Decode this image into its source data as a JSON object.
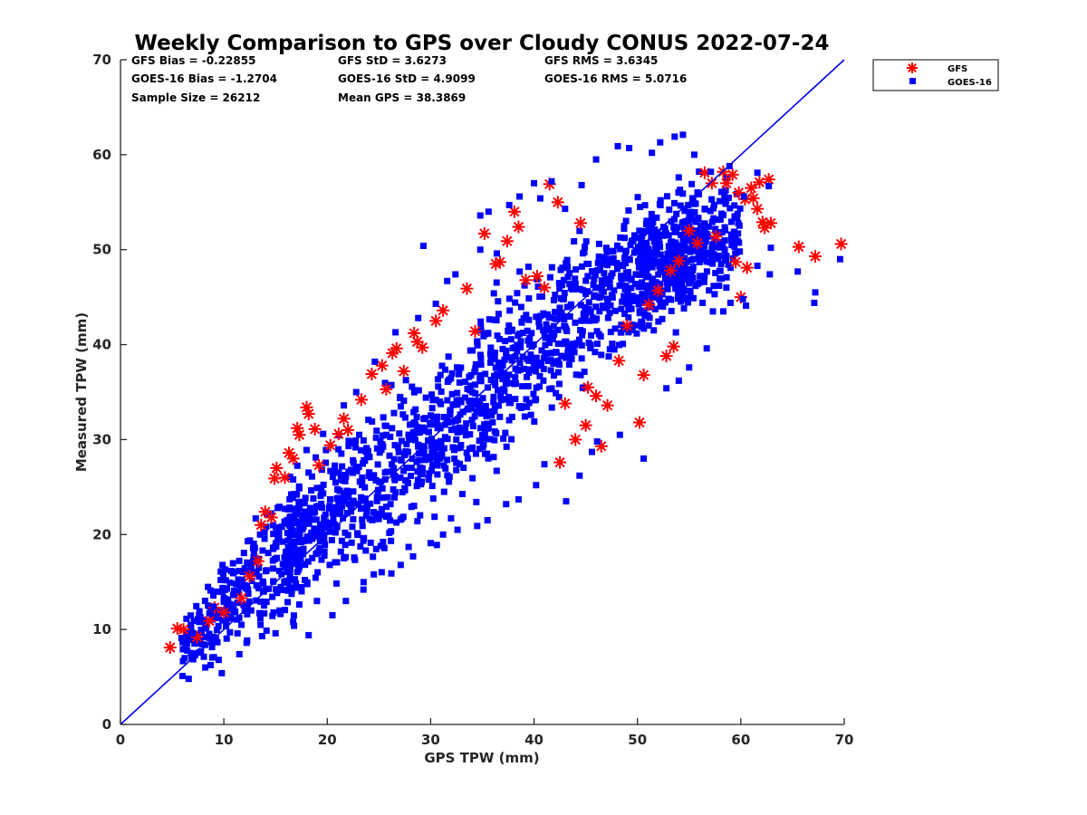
{
  "chart_data": {
    "type": "scatter",
    "title": "Weekly Comparison to GPS over Cloudy CONUS 2022-07-24",
    "xlabel": "GPS TPW (mm)",
    "ylabel": "Measured TPW (mm)",
    "xlim": [
      0,
      70
    ],
    "ylim": [
      0,
      70
    ],
    "xticks": [
      "0",
      "10",
      "20",
      "30",
      "40",
      "50",
      "60",
      "70"
    ],
    "yticks": [
      "0",
      "10",
      "20",
      "30",
      "40",
      "50",
      "60",
      "70"
    ],
    "grid": false,
    "legend_position": "outside-top-right",
    "stats": {
      "gfs_bias": "GFS Bias = -0.22855",
      "gfs_std": "GFS StD = 3.6273",
      "gfs_rms": "GFS RMS = 3.6345",
      "goes_bias": "GOES-16 Bias = -1.2704",
      "goes_std": "GOES-16 StD = 4.9099",
      "goes_rms": "GOES-16 RMS = 5.0716",
      "sample_size": "Sample Size = 26212",
      "mean_gps": "Mean GPS = 38.3869"
    },
    "reference_line": {
      "x": [
        0,
        70
      ],
      "y": [
        0,
        70
      ],
      "color": "#0000ee"
    },
    "series": [
      {
        "name": "GFS",
        "marker": "asterisk",
        "color": "#ff0000",
        "points": [
          [
            4.8,
            8.1
          ],
          [
            5.5,
            10.1
          ],
          [
            6.1,
            10.0
          ],
          [
            7.4,
            9.2
          ],
          [
            8.6,
            10.9
          ],
          [
            9.1,
            12.3
          ],
          [
            10.0,
            11.8
          ],
          [
            11.7,
            13.3
          ],
          [
            12.5,
            15.6
          ],
          [
            13.3,
            17.2
          ],
          [
            13.6,
            21.0
          ],
          [
            14.0,
            22.4
          ],
          [
            14.6,
            21.8
          ],
          [
            14.9,
            25.9
          ],
          [
            15.1,
            27.0
          ],
          [
            15.9,
            26.0
          ],
          [
            16.3,
            28.6
          ],
          [
            16.7,
            28.0
          ],
          [
            17.1,
            31.2
          ],
          [
            17.3,
            30.5
          ],
          [
            18.0,
            33.4
          ],
          [
            18.2,
            32.7
          ],
          [
            18.8,
            31.1
          ],
          [
            19.2,
            27.3
          ],
          [
            20.3,
            29.4
          ],
          [
            21.1,
            30.6
          ],
          [
            21.6,
            32.2
          ],
          [
            22.0,
            31.0
          ],
          [
            23.3,
            34.2
          ],
          [
            24.3,
            36.9
          ],
          [
            25.3,
            37.8
          ],
          [
            25.7,
            35.3
          ],
          [
            26.3,
            39.1
          ],
          [
            26.7,
            39.6
          ],
          [
            27.4,
            37.2
          ],
          [
            28.4,
            41.2
          ],
          [
            28.7,
            40.3
          ],
          [
            29.2,
            39.7
          ],
          [
            30.5,
            42.5
          ],
          [
            31.2,
            43.6
          ],
          [
            33.5,
            45.9
          ],
          [
            34.3,
            41.4
          ],
          [
            35.2,
            51.7
          ],
          [
            36.3,
            48.5
          ],
          [
            36.7,
            48.7
          ],
          [
            37.4,
            50.9
          ],
          [
            38.1,
            54.0
          ],
          [
            38.5,
            52.4
          ],
          [
            39.2,
            46.8
          ],
          [
            40.3,
            47.2
          ],
          [
            41.0,
            46.0
          ],
          [
            42.3,
            55.0
          ],
          [
            41.5,
            56.9
          ],
          [
            44.5,
            52.8
          ],
          [
            43.0,
            33.8
          ],
          [
            42.5,
            27.6
          ],
          [
            44.0,
            30.0
          ],
          [
            45.0,
            31.5
          ],
          [
            45.2,
            35.5
          ],
          [
            46.0,
            34.6
          ],
          [
            46.5,
            29.3
          ],
          [
            47.1,
            33.6
          ],
          [
            48.2,
            38.3
          ],
          [
            49.0,
            42.0
          ],
          [
            50.2,
            31.8
          ],
          [
            50.6,
            36.8
          ],
          [
            51.1,
            44.2
          ],
          [
            52.0,
            45.7
          ],
          [
            52.8,
            38.8
          ],
          [
            53.5,
            39.8
          ],
          [
            53.2,
            47.8
          ],
          [
            54.0,
            48.8
          ],
          [
            55.0,
            52.0
          ],
          [
            55.8,
            50.7
          ],
          [
            56.5,
            58.1
          ],
          [
            57.2,
            57.0
          ],
          [
            57.6,
            51.4
          ],
          [
            58.3,
            58.2
          ],
          [
            58.6,
            57.0
          ],
          [
            59.2,
            57.9
          ],
          [
            59.5,
            48.7
          ],
          [
            59.8,
            56.0
          ],
          [
            60.0,
            45.0
          ],
          [
            60.4,
            55.3
          ],
          [
            60.6,
            48.1
          ],
          [
            61.0,
            56.5
          ],
          [
            61.2,
            55.4
          ],
          [
            61.6,
            54.3
          ],
          [
            61.8,
            57.1
          ],
          [
            62.1,
            52.9
          ],
          [
            62.3,
            52.3
          ],
          [
            62.7,
            57.4
          ],
          [
            62.9,
            52.8
          ],
          [
            65.6,
            50.3
          ],
          [
            67.2,
            49.3
          ],
          [
            69.7,
            50.6
          ]
        ]
      },
      {
        "name": "GOES-16",
        "marker": "square",
        "color": "#0000ff",
        "points": [
          [
            6.0,
            5.1
          ],
          [
            6.6,
            4.8
          ],
          [
            7.0,
            9.6
          ],
          [
            8.2,
            6.0
          ],
          [
            9.5,
            6.8
          ],
          [
            9.8,
            5.4
          ],
          [
            10.3,
            14.3
          ],
          [
            11.5,
            7.4
          ],
          [
            12.2,
            8.6
          ],
          [
            13.7,
            9.3
          ],
          [
            15.0,
            9.6
          ],
          [
            16.7,
            10.8
          ],
          [
            18.2,
            9.4
          ],
          [
            19.0,
            13.0
          ],
          [
            20.5,
            11.5
          ],
          [
            21.8,
            13.0
          ],
          [
            23.5,
            14.2
          ],
          [
            24.5,
            15.8
          ],
          [
            26.2,
            15.9
          ],
          [
            27.1,
            16.8
          ],
          [
            28.3,
            17.7
          ],
          [
            30.0,
            19.1
          ],
          [
            30.6,
            18.9
          ],
          [
            31.2,
            20.0
          ],
          [
            32.6,
            20.5
          ],
          [
            34.5,
            20.9
          ],
          [
            35.5,
            21.5
          ],
          [
            37.3,
            23.2
          ],
          [
            38.5,
            23.7
          ],
          [
            40.2,
            25.2
          ],
          [
            41.0,
            27.4
          ],
          [
            43.1,
            23.5
          ],
          [
            44.4,
            26.2
          ],
          [
            45.6,
            28.7
          ],
          [
            46.1,
            29.8
          ],
          [
            48.3,
            30.5
          ],
          [
            50.6,
            28.0
          ],
          [
            52.8,
            35.4
          ],
          [
            54.0,
            36.2
          ],
          [
            55.0,
            37.6
          ],
          [
            56.7,
            39.6
          ],
          [
            57.3,
            43.5
          ],
          [
            58.3,
            43.5
          ],
          [
            58.6,
            46.0
          ],
          [
            59.0,
            44.4
          ],
          [
            60.2,
            44.8
          ],
          [
            60.5,
            44.1
          ],
          [
            61.6,
            48.3
          ],
          [
            62.8,
            47.4
          ],
          [
            65.5,
            47.7
          ],
          [
            67.1,
            44.4
          ],
          [
            67.2,
            45.5
          ],
          [
            69.6,
            49.0
          ],
          [
            62.9,
            50.2
          ],
          [
            62.7,
            56.7
          ],
          [
            61.6,
            58.1
          ],
          [
            60.3,
            55.6
          ],
          [
            58.9,
            58.8
          ],
          [
            57.1,
            58.2
          ],
          [
            55.5,
            60.0
          ],
          [
            54.4,
            62.1
          ],
          [
            53.6,
            61.9
          ],
          [
            52.2,
            61.3
          ],
          [
            51.4,
            60.2
          ],
          [
            49.2,
            60.7
          ],
          [
            48.1,
            60.9
          ],
          [
            46.0,
            59.5
          ],
          [
            44.6,
            56.8
          ],
          [
            41.7,
            57.2
          ],
          [
            40.6,
            55.4
          ],
          [
            38.6,
            55.6
          ],
          [
            37.6,
            54.7
          ],
          [
            36.4,
            49.6
          ],
          [
            34.8,
            50.0
          ],
          [
            32.4,
            47.4
          ],
          [
            31.6,
            46.7
          ],
          [
            30.5,
            44.3
          ],
          [
            28.8,
            42.8
          ],
          [
            26.6,
            41.3
          ],
          [
            24.6,
            38.2
          ],
          [
            22.8,
            35.0
          ],
          [
            21.6,
            33.6
          ],
          [
            19.6,
            30.6
          ],
          [
            18.0,
            28.9
          ],
          [
            16.7,
            25.8
          ],
          [
            15.2,
            22.8
          ],
          [
            13.5,
            20.0
          ],
          [
            12.5,
            17.0
          ],
          [
            11.0,
            13.7
          ],
          [
            9.0,
            12.4
          ],
          [
            8.6,
            11.7
          ],
          [
            7.1,
            10.9
          ],
          [
            5.9,
            9.1
          ],
          [
            34.8,
            53.6
          ],
          [
            35.6,
            54.0
          ],
          [
            29.3,
            50.4
          ],
          [
            40.0,
            57.0
          ],
          [
            43.0,
            54.3
          ],
          [
            42.2,
            42.7
          ],
          [
            39.8,
            39.8
          ],
          [
            33.8,
            35.2
          ],
          [
            27.9,
            30.0
          ],
          [
            25.6,
            25.8
          ],
          [
            20.5,
            22.3
          ]
        ]
      }
    ],
    "density_cloud": {
      "description_note": "",
      "center_line": [
        [
          5,
          7
        ],
        [
          15,
          17.5
        ],
        [
          25,
          26
        ],
        [
          35,
          35
        ],
        [
          45,
          44
        ],
        [
          55,
          50
        ],
        [
          60,
          52
        ]
      ],
      "spread": [
        2.0,
        5.5,
        7.0,
        7.5,
        7.0,
        5.5,
        4.0
      ]
    }
  }
}
